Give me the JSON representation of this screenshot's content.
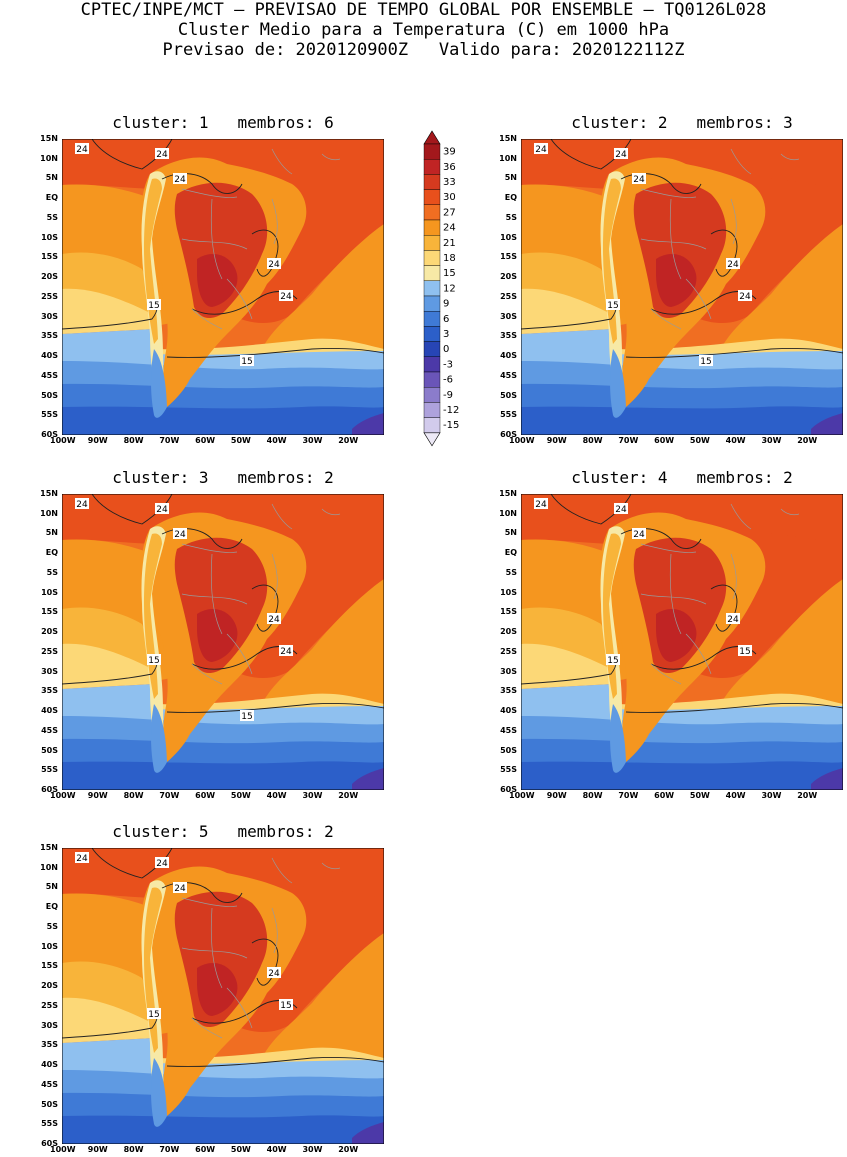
{
  "header": {
    "line1": "CPTEC/INPE/MCT – PREVISAO DE TEMPO GLOBAL POR ENSEMBLE – TQ0126L028",
    "line2": "Cluster Medio para a Temperatura (C) em 1000 hPa",
    "line3": "Previsao de: 2020120900Z   Valido para: 2020122112Z"
  },
  "panels": [
    {
      "title": "cluster: 1   membros: 6",
      "labels": [
        "24",
        "24",
        "24",
        "24",
        "24",
        "15",
        "15"
      ]
    },
    {
      "title": "cluster: 2   membros: 3",
      "labels": [
        "24",
        "24",
        "24",
        "24",
        "24",
        "15",
        "15"
      ]
    },
    {
      "title": "cluster: 3   membros: 2",
      "labels": [
        "24",
        "24",
        "24",
        "24",
        "24",
        "15",
        "15"
      ]
    },
    {
      "title": "cluster: 4   membros: 2",
      "labels": [
        "24",
        "24",
        "24",
        "24",
        "15",
        "15"
      ]
    },
    {
      "title": "cluster: 5   membros: 2",
      "labels": [
        "24",
        "24",
        "24",
        "24",
        "15",
        "15"
      ]
    }
  ],
  "axes": {
    "lat_labels": [
      "15N",
      "10N",
      "5N",
      "EQ",
      "5S",
      "10S",
      "15S",
      "20S",
      "25S",
      "30S",
      "35S",
      "40S",
      "45S",
      "50S",
      "55S",
      "60S"
    ],
    "lon_labels": [
      "100W",
      "90W",
      "80W",
      "70W",
      "60W",
      "50W",
      "40W",
      "30W",
      "20W"
    ]
  },
  "colorbar": {
    "labels": [
      "39",
      "36",
      "33",
      "30",
      "27",
      "24",
      "21",
      "18",
      "15",
      "12",
      "9",
      "6",
      "3",
      "0",
      "-3",
      "-6",
      "-9",
      "-12",
      "-15"
    ],
    "colors": [
      "#a3181c",
      "#c02424",
      "#d53a1f",
      "#e8501c",
      "#f06e22",
      "#f5961f",
      "#f8b43a",
      "#fcd877",
      "#f7e9a6",
      "#8fc0ef",
      "#5f9ae2",
      "#3f7ad6",
      "#2c5fc9",
      "#2745b5",
      "#4c39a8",
      "#6a55b8",
      "#8b7ccb",
      "#aea2dc",
      "#d2cbec"
    ]
  },
  "palette": {
    "bg_warm": "#f06e22",
    "bg_hot": "#e8501c",
    "land_mid": "#f5961f",
    "land_hot": "#d53a1f",
    "land_hottest": "#c02424",
    "sub_1": "#f8b43a",
    "sub_2": "#fcd877",
    "cool_1": "#8fc0ef",
    "cool_2": "#5f9ae2",
    "cool_3": "#3f7ad6",
    "cool_4": "#2c5fc9",
    "cold": "#4c39a8",
    "andes": "#f7e9a6",
    "border": "#9a9a9a"
  }
}
